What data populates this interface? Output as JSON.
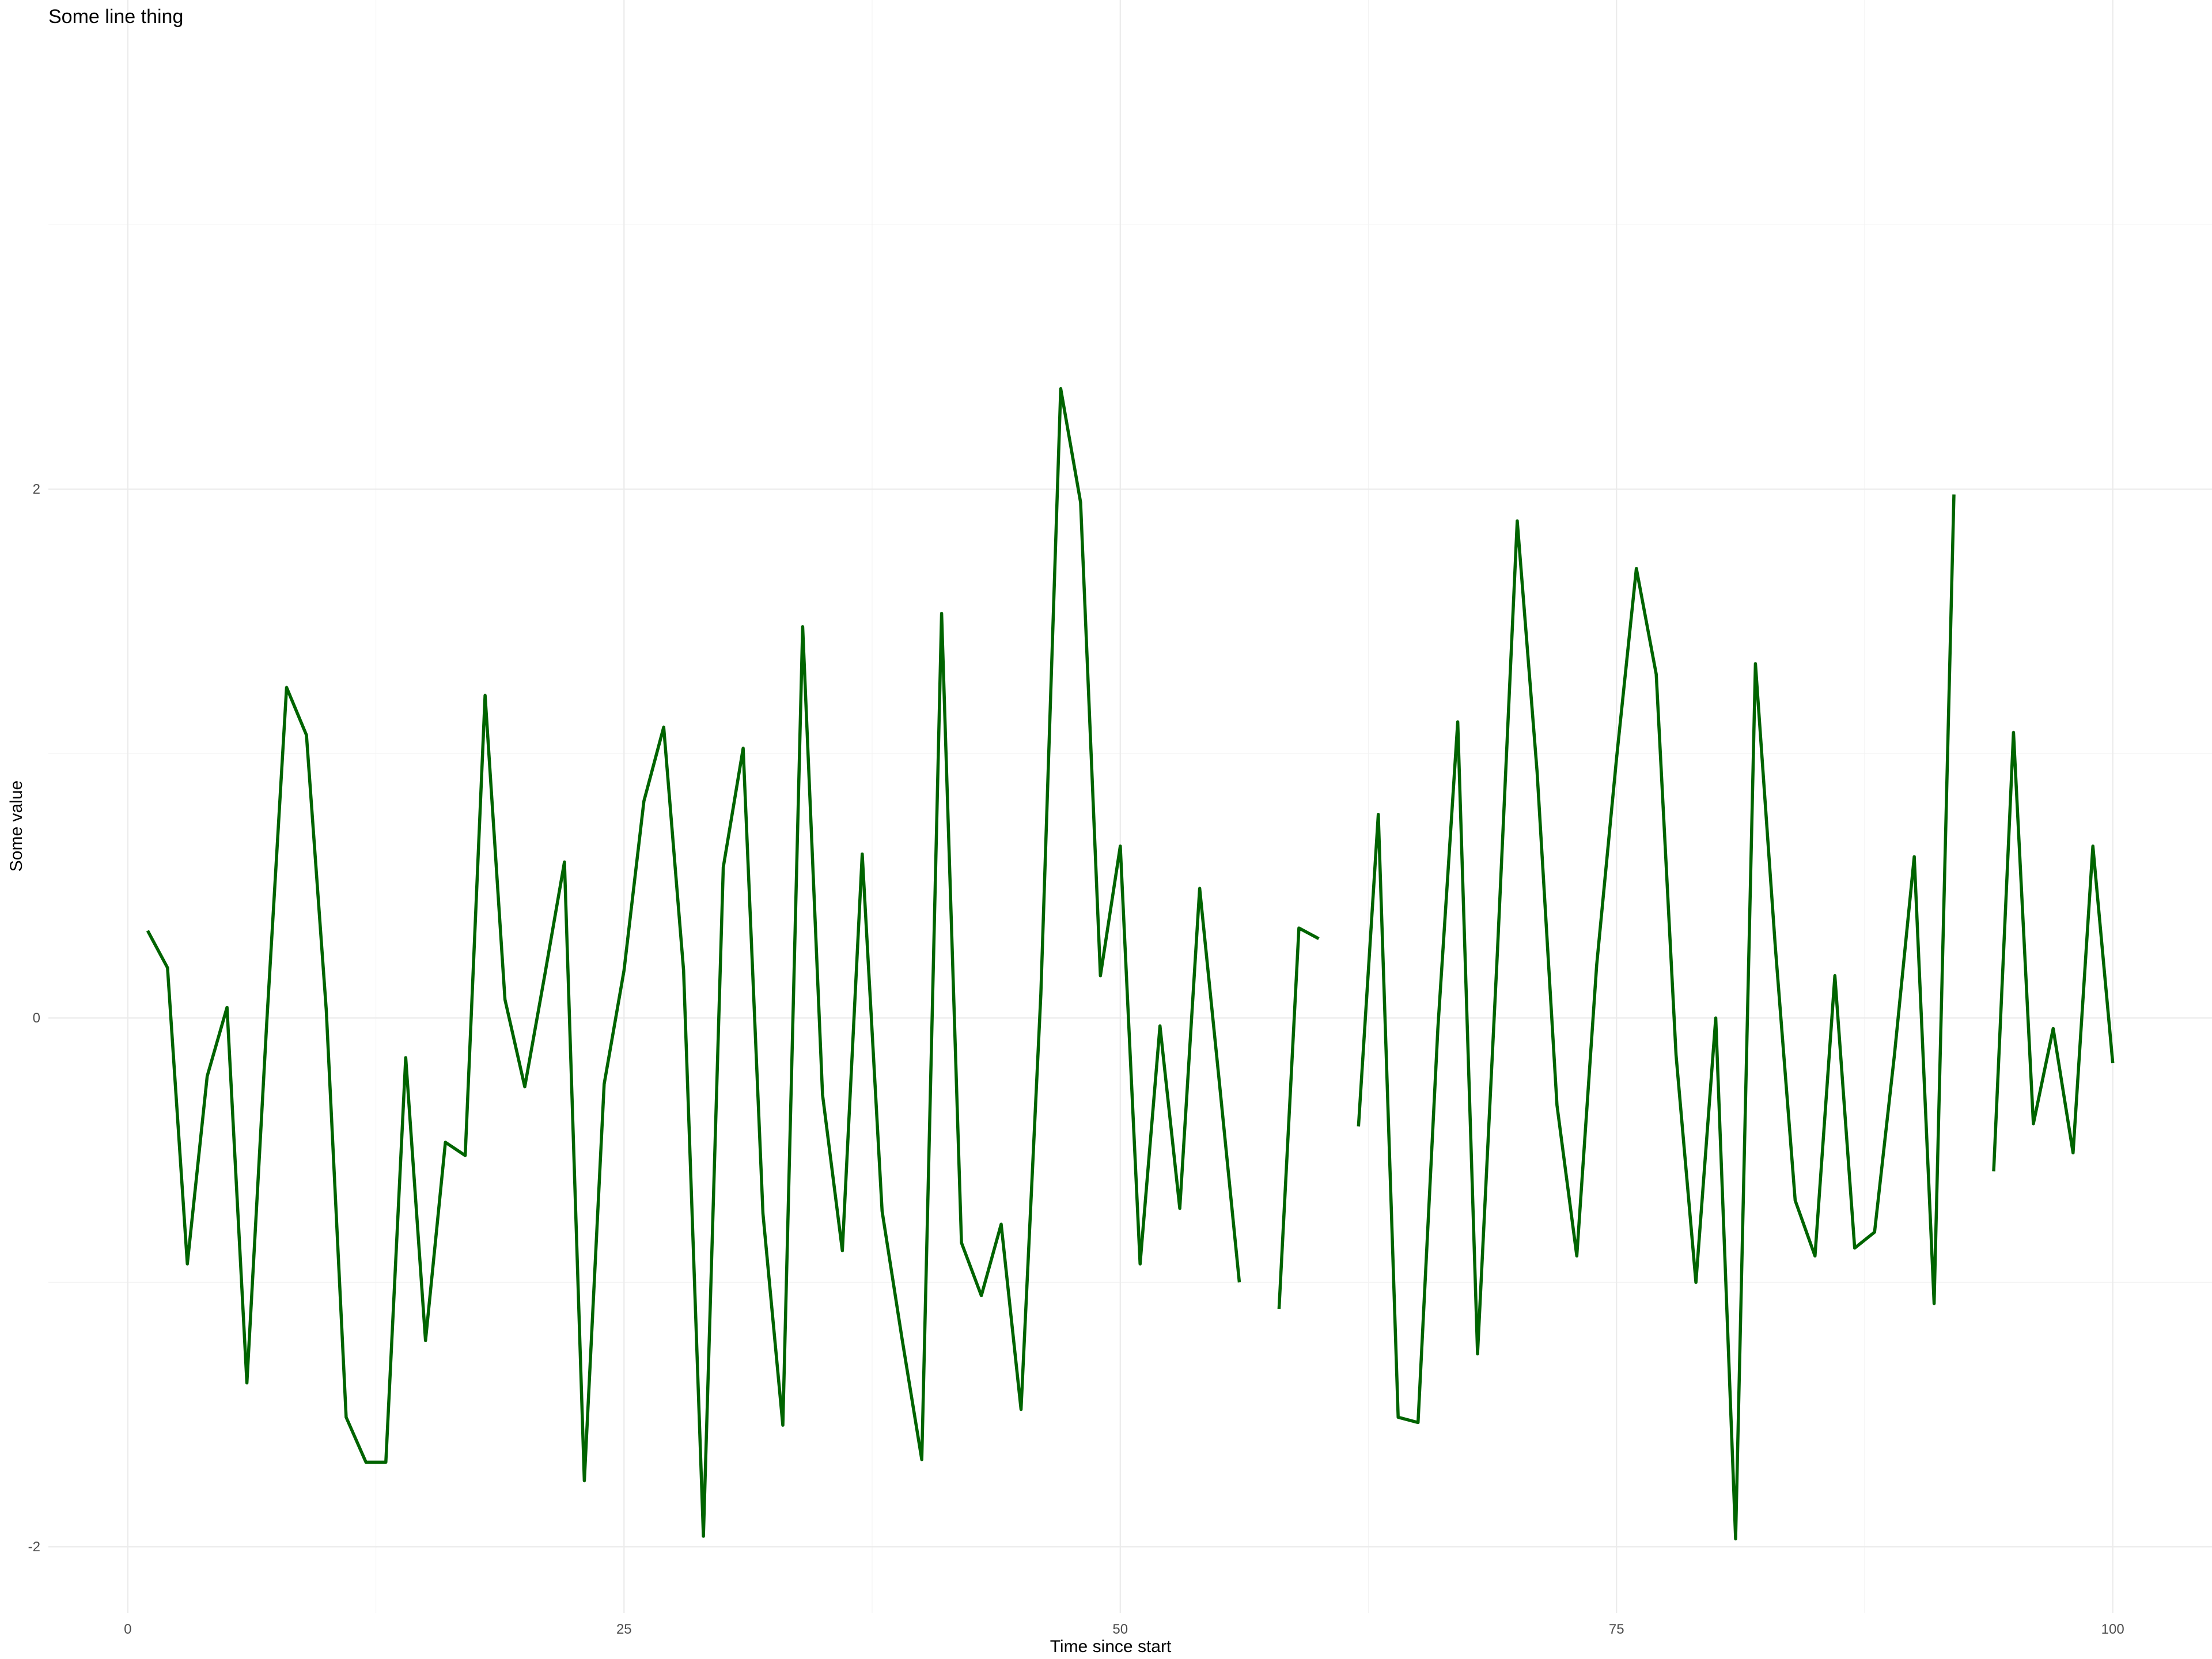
{
  "chart_data": {
    "type": "line",
    "title": "Some line thing",
    "xlabel": "Time since start",
    "ylabel": "Some value",
    "xlim": [
      -4,
      105
    ],
    "ylim": [
      -2.25,
      3.85
    ],
    "x_ticks": [
      0,
      25,
      50,
      75,
      100
    ],
    "x_tick_labels": [
      "0",
      "25",
      "50",
      "75",
      "100"
    ],
    "x_minor_ticks": [
      12.5,
      37.5,
      62.5,
      87.5
    ],
    "y_ticks": [
      -2,
      0,
      2
    ],
    "y_tick_labels": [
      "-2",
      "0",
      "2"
    ],
    "y_minor_ticks": [
      -1,
      1,
      3
    ],
    "grid": true,
    "legend": "none",
    "series": [
      {
        "color": "#006400",
        "x": [
          1,
          2,
          3,
          4,
          5,
          6,
          7,
          8,
          9,
          10,
          11,
          12,
          13,
          14,
          15,
          16,
          17,
          18,
          19,
          20,
          21,
          22,
          23,
          24,
          25,
          26,
          27,
          28,
          29,
          30,
          31,
          32,
          33,
          34,
          35,
          36,
          37,
          38,
          39,
          40,
          41,
          42,
          43,
          44,
          45,
          46,
          47,
          48,
          49,
          50,
          51,
          52,
          53,
          54,
          55,
          56,
          57,
          58,
          59,
          60,
          61,
          62,
          63,
          64,
          65,
          66,
          67,
          68,
          69,
          70,
          71,
          72,
          73,
          74,
          75,
          76,
          77,
          78,
          79,
          80,
          81,
          82,
          83,
          84,
          85,
          86,
          87,
          88,
          89,
          90,
          91,
          92,
          93,
          94,
          95,
          96,
          97,
          98,
          99,
          100
        ],
        "y": [
          0.33,
          0.19,
          -0.93,
          -0.22,
          0.04,
          -1.38,
          -0.02,
          1.25,
          1.07,
          0.03,
          -1.51,
          -1.68,
          -1.68,
          -0.15,
          -1.22,
          -0.47,
          -0.52,
          1.22,
          0.07,
          -0.26,
          0.16,
          0.59,
          -1.75,
          -0.25,
          0.18,
          0.82,
          1.1,
          0.18,
          -1.96,
          0.57,
          1.02,
          -0.74,
          -1.54,
          1.48,
          -0.29,
          -0.88,
          0.62,
          -0.73,
          -1.21,
          -1.67,
          1.53,
          -0.85,
          -1.05,
          -0.78,
          -1.48,
          0.09,
          2.38,
          1.95,
          0.16,
          0.65,
          -0.93,
          -0.03,
          -0.72,
          0.49,
          -0.25,
          -1.0,
          null,
          -1.1,
          0.34,
          0.3,
          null,
          -0.41,
          0.77,
          -1.51,
          -1.53,
          -0.04,
          1.12,
          -1.27,
          0.25,
          1.88,
          0.93,
          -0.33,
          -0.9,
          0.2,
          0.98,
          1.7,
          1.3,
          -0.14,
          -1.0,
          0.0,
          -1.97,
          1.34,
          0.27,
          -0.69,
          -0.9,
          0.16,
          -0.87,
          -0.81,
          -0.14,
          0.61,
          -1.08,
          1.98,
          null,
          -0.58,
          1.08,
          -0.4,
          -0.04,
          -0.51,
          0.65,
          -0.17
        ]
      }
    ]
  }
}
